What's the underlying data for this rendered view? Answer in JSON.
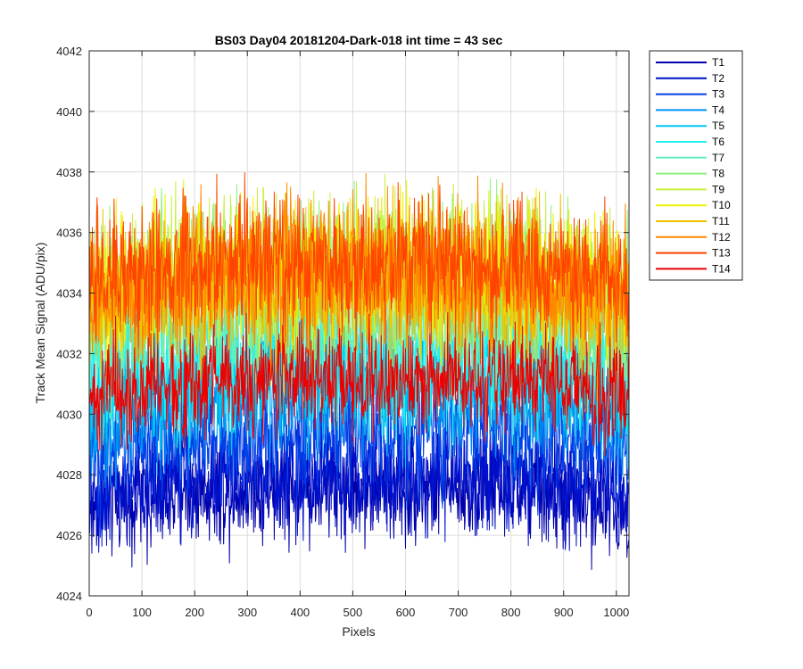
{
  "chart_data": {
    "type": "line",
    "title": "BS03 Day04 20181204-Dark-018 int time = 43 sec",
    "xlabel": "Pixels",
    "ylabel": "Track Mean Signal (ADU/pix)",
    "xlim": [
      0,
      1024
    ],
    "ylim": [
      4024,
      4042
    ],
    "xticks": [
      0,
      100,
      200,
      300,
      400,
      500,
      600,
      700,
      800,
      900,
      1000
    ],
    "yticks": [
      4024,
      4026,
      4028,
      4030,
      4032,
      4034,
      4036,
      4038,
      4040,
      4042
    ],
    "grid": true,
    "legend_position": "outside-top-right",
    "n_points": 1024,
    "series": [
      {
        "name": "T1",
        "color": "#0000AA",
        "mean": 4027.6,
        "noise": 0.9
      },
      {
        "name": "T2",
        "color": "#0010CC",
        "mean": 4028.0,
        "noise": 0.9
      },
      {
        "name": "T3",
        "color": "#0040E8",
        "mean": 4029.5,
        "noise": 1.0
      },
      {
        "name": "T4",
        "color": "#0090F0",
        "mean": 4030.6,
        "noise": 1.0
      },
      {
        "name": "T5",
        "color": "#00C8F0",
        "mean": 4031.3,
        "noise": 1.1
      },
      {
        "name": "T6",
        "color": "#20F0F0",
        "mean": 4032.0,
        "noise": 1.2
      },
      {
        "name": "T7",
        "color": "#60F0C0",
        "mean": 4033.0,
        "noise": 1.2
      },
      {
        "name": "T8",
        "color": "#90F080",
        "mean": 4034.6,
        "noise": 1.3
      },
      {
        "name": "T9",
        "color": "#C8F040",
        "mean": 4034.8,
        "noise": 1.2
      },
      {
        "name": "T10",
        "color": "#F0F000",
        "mean": 4034.6,
        "noise": 1.2
      },
      {
        "name": "T11",
        "color": "#F0C000",
        "mean": 4034.2,
        "noise": 1.2
      },
      {
        "name": "T12",
        "color": "#FF8800",
        "mean": 4034.6,
        "noise": 1.2
      },
      {
        "name": "T13",
        "color": "#FF4400",
        "mean": 4035.0,
        "noise": 1.1
      },
      {
        "name": "T14",
        "color": "#EE0000",
        "mean": 4031.2,
        "noise": 0.9
      }
    ]
  }
}
